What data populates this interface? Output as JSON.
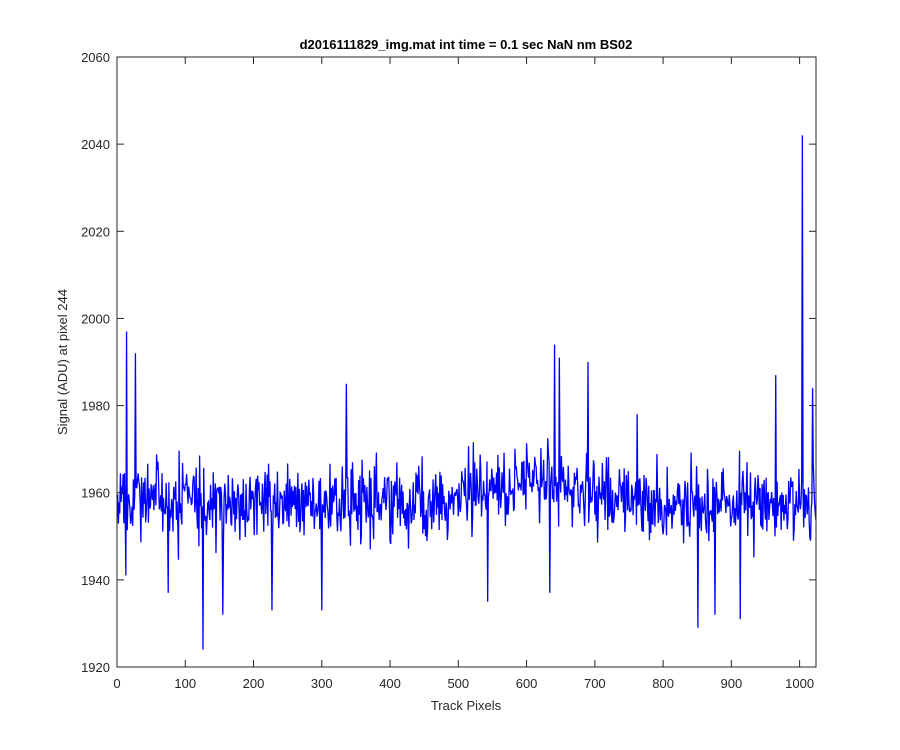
{
  "chart_data": {
    "type": "line",
    "title": "d2016111829_img.mat int time = 0.1 sec  NaN nm BS02",
    "xlabel": "Track Pixels",
    "ylabel": "Signal (ADU) at pixel 244",
    "xlim": [
      0,
      1024
    ],
    "ylim": [
      1920,
      2060
    ],
    "xticks": [
      0,
      100,
      200,
      300,
      400,
      500,
      600,
      700,
      800,
      900,
      1000
    ],
    "yticks": [
      1920,
      1940,
      1960,
      1980,
      2000,
      2020,
      2040,
      2060
    ],
    "grid": false,
    "series": [
      {
        "color": "#0000ff",
        "generator": "noisy detector trace, ~1024 samples, mean ~1958 with bump ~1962 near x 500-700",
        "baseline": 1958,
        "noise_amplitude": 6,
        "spikes": [
          {
            "x": 14,
            "y": 1997
          },
          {
            "x": 27,
            "y": 1992
          },
          {
            "x": 13,
            "y": 1941
          },
          {
            "x": 75,
            "y": 1937
          },
          {
            "x": 126,
            "y": 1924
          },
          {
            "x": 155,
            "y": 1932
          },
          {
            "x": 227,
            "y": 1933
          },
          {
            "x": 300,
            "y": 1933
          },
          {
            "x": 336,
            "y": 1985
          },
          {
            "x": 543,
            "y": 1935
          },
          {
            "x": 634,
            "y": 1937
          },
          {
            "x": 641,
            "y": 1994
          },
          {
            "x": 648,
            "y": 1991
          },
          {
            "x": 690,
            "y": 1990
          },
          {
            "x": 762,
            "y": 1978
          },
          {
            "x": 851,
            "y": 1929
          },
          {
            "x": 876,
            "y": 1932
          },
          {
            "x": 913,
            "y": 1931
          },
          {
            "x": 965,
            "y": 1987
          },
          {
            "x": 1004,
            "y": 2042
          },
          {
            "x": 1019,
            "y": 1984
          },
          {
            "x": 1016,
            "y": 1949
          }
        ]
      }
    ]
  }
}
